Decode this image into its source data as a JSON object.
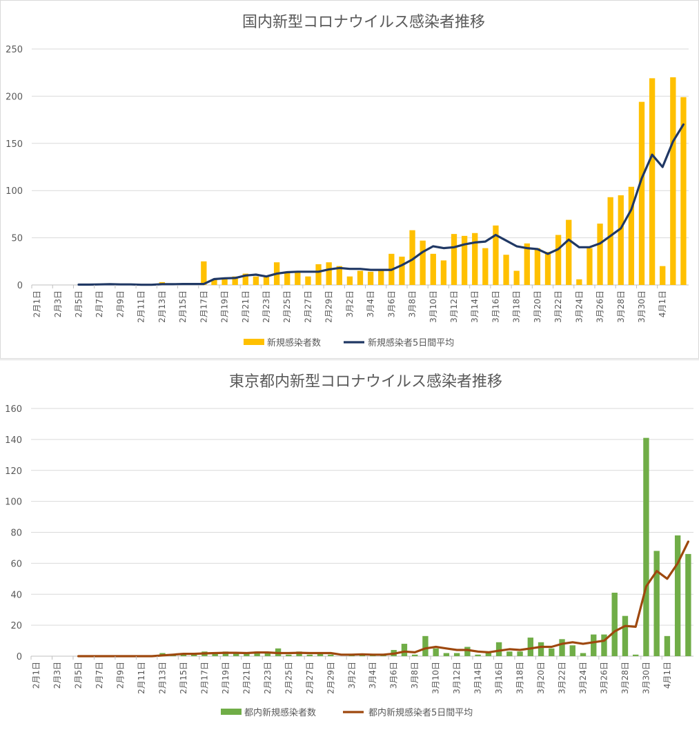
{
  "chart_data": [
    {
      "type": "bar",
      "title": "国内新型コロナウイルス感染者推移",
      "xlabel": "",
      "ylabel": "",
      "ylim": [
        0,
        250
      ],
      "yticks": [
        0,
        50,
        100,
        150,
        200,
        250
      ],
      "grid": true,
      "legend_position": "bottom",
      "start_date": "2020-02-01",
      "x_tick_labels": [
        "2月1日",
        "2月3日",
        "2月5日",
        "2月7日",
        "2月9日",
        "2月11日",
        "2月13日",
        "2月15日",
        "2月17日",
        "2月19日",
        "2月21日",
        "2月23日",
        "2月25日",
        "2月27日",
        "2月29日",
        "3月2日",
        "3月4日",
        "3月6日",
        "3月8日",
        "3月10日",
        "3月12日",
        "3月14日",
        "3月16日",
        "3月18日",
        "3月20日",
        "3月22日",
        "3月24日",
        "3月26日",
        "3月28日",
        "3月30日",
        "4月1日"
      ],
      "series": [
        {
          "name": "新規感染者数",
          "kind": "bar",
          "color": "#ffc000",
          "values": [
            0,
            0,
            0,
            0,
            0,
            0,
            1,
            1,
            1,
            0,
            0,
            0,
            3,
            0,
            0,
            0,
            25,
            6,
            6,
            9,
            12,
            9,
            9,
            24,
            13,
            14,
            9,
            22,
            24,
            20,
            9,
            15,
            14,
            16,
            33,
            30,
            58,
            47,
            33,
            26,
            54,
            52,
            55,
            39,
            63,
            32,
            15,
            44,
            39,
            35,
            53,
            69,
            6,
            39,
            65,
            93,
            95,
            104,
            194,
            219,
            20,
            220,
            199
          ]
        },
        {
          "name": "新規感染者5日間平均",
          "kind": "line",
          "color": "#203864",
          "values": [
            null,
            null,
            null,
            null,
            0.4,
            0.4,
            0.6,
            0.8,
            0.6,
            0.6,
            0.2,
            0.2,
            0.8,
            0.8,
            1,
            1,
            1,
            6.2,
            7,
            7.4,
            10,
            11,
            9,
            12,
            13.5,
            14,
            14,
            14,
            16.5,
            18,
            17,
            17,
            16,
            16,
            16,
            21,
            27,
            35,
            41,
            39,
            40,
            43,
            45,
            46,
            53,
            47,
            41,
            39,
            38,
            33,
            38,
            48,
            40,
            40,
            44,
            52,
            60,
            80,
            113,
            138,
            125,
            152,
            170
          ]
        }
      ]
    },
    {
      "type": "bar",
      "title": "東京都内新型コロナウイルス感染者推移",
      "xlabel": "",
      "ylabel": "",
      "ylim": [
        0,
        160
      ],
      "yticks": [
        0,
        20,
        40,
        60,
        80,
        100,
        120,
        140,
        160
      ],
      "grid": true,
      "legend_position": "bottom",
      "start_date": "2020-02-01",
      "x_tick_labels": [
        "2月1日",
        "2月3日",
        "2月5日",
        "2月7日",
        "2月9日",
        "2月11日",
        "2月13日",
        "2月15日",
        "2月17日",
        "2月19日",
        "2月21日",
        "2月23日",
        "2月25日",
        "2月27日",
        "2月29日",
        "3月2日",
        "3月4日",
        "3月6日",
        "3月8日",
        "3月10日",
        "3月12日",
        "3月14日",
        "3月16日",
        "3月18日",
        "3月20日",
        "3月22日",
        "3月24日",
        "3月26日",
        "3月28日",
        "3月30日",
        "4月1日"
      ],
      "series": [
        {
          "name": "都内新規感染者数",
          "kind": "bar",
          "color": "#70ad47",
          "values": [
            0,
            0,
            0,
            0,
            0,
            0,
            0,
            0,
            0,
            0,
            0,
            0,
            2,
            1,
            1,
            2,
            3,
            2,
            3,
            2,
            2,
            3,
            2,
            5,
            1,
            3,
            1,
            2,
            1,
            0,
            1,
            1,
            1,
            1,
            4,
            8,
            1,
            13,
            5,
            2,
            2,
            6,
            1,
            2,
            9,
            3,
            3,
            12,
            9,
            5,
            11,
            7,
            2,
            14,
            14,
            41,
            26,
            1,
            141,
            68,
            13,
            78,
            66
          ]
        },
        {
          "name": "都内新規感染者5日間平均",
          "kind": "line",
          "color": "#9e480e",
          "values": [
            null,
            null,
            null,
            null,
            0,
            0,
            0,
            0,
            0,
            0,
            0,
            0,
            0.5,
            1,
            1.5,
            1.5,
            1.8,
            2,
            2.2,
            2.2,
            2,
            2.4,
            2.4,
            2,
            2,
            2.2,
            2,
            2,
            2,
            1,
            1,
            1.2,
            1,
            1,
            1.6,
            3,
            2.5,
            5,
            6,
            5,
            4,
            4,
            3,
            2.5,
            3.5,
            4.5,
            4,
            5,
            6,
            6,
            8,
            9,
            8,
            9,
            10,
            16,
            19.5,
            19,
            45,
            55,
            50,
            60,
            74
          ]
        }
      ]
    }
  ]
}
